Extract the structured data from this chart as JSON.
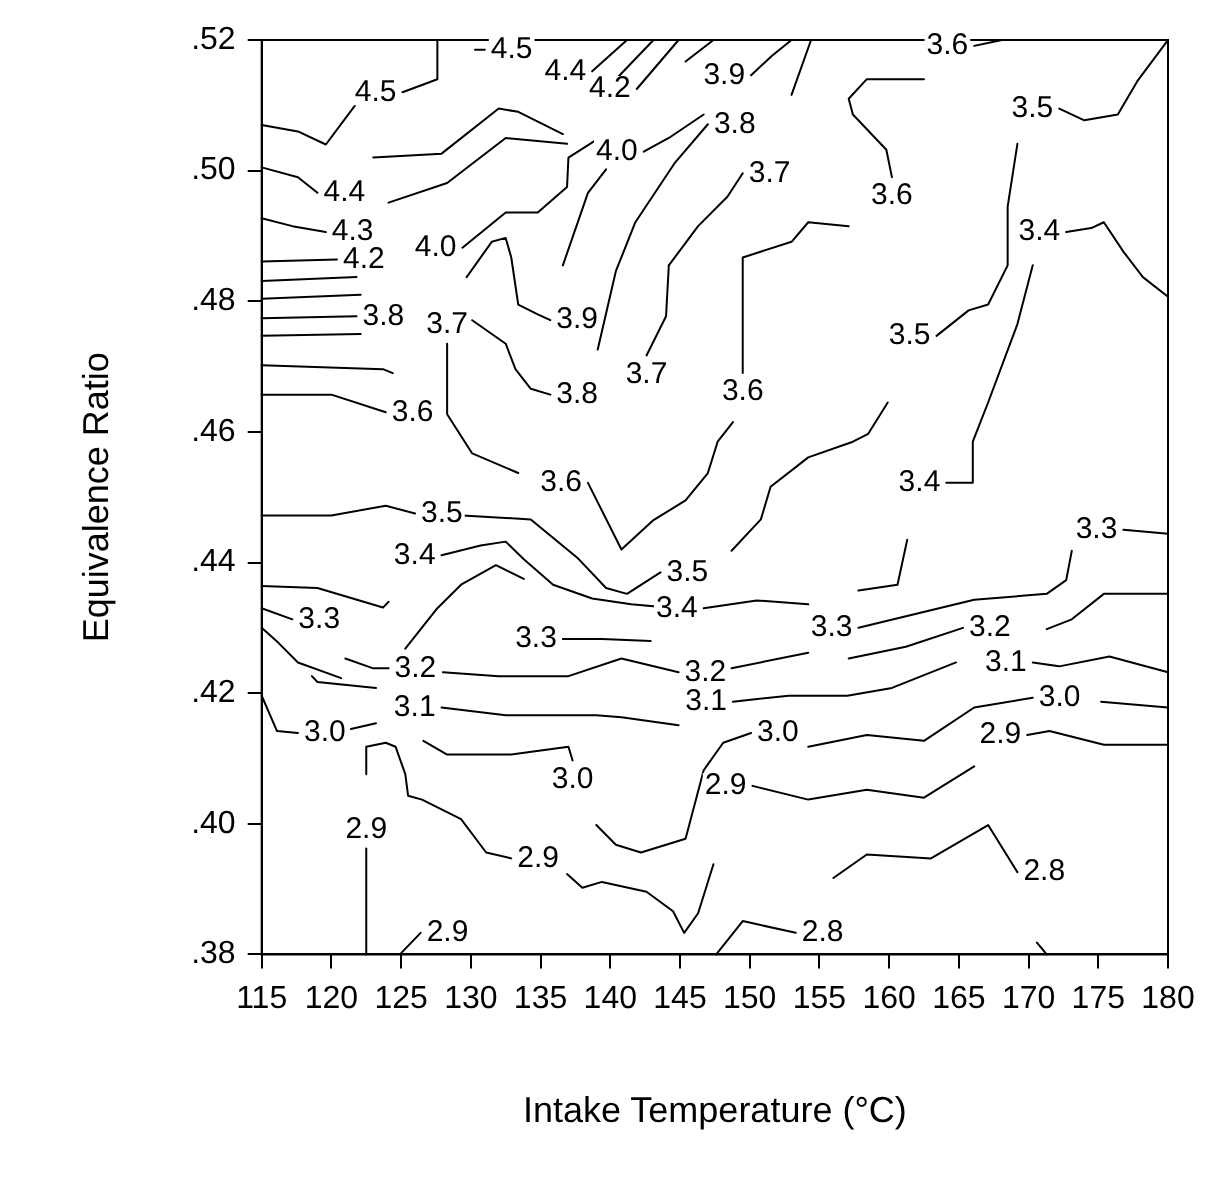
{
  "chart_data": {
    "type": "line",
    "xlabel": "Intake Temperature (°C)",
    "ylabel": "Equivalence Ratio",
    "xlim": [
      115,
      180
    ],
    "xticks": [
      115,
      120,
      125,
      130,
      135,
      140,
      145,
      150,
      155,
      160,
      165,
      170,
      175,
      180
    ],
    "ylim": [
      0.38,
      0.52
    ],
    "yticks": [
      {
        "value": 0.38,
        "label": ".38"
      },
      {
        "value": 0.4,
        "label": ".40"
      },
      {
        "value": 0.42,
        "label": ".42"
      },
      {
        "value": 0.44,
        "label": ".44"
      },
      {
        "value": 0.46,
        "label": ".46"
      },
      {
        "value": 0.48,
        "label": ".48"
      },
      {
        "value": 0.5,
        "label": ".50"
      },
      {
        "value": 0.52,
        "label": ".52"
      }
    ],
    "grid": false,
    "legend": false,
    "marker": "none",
    "line_style": "solid",
    "series": [
      {
        "name": "4.5",
        "color": "#000000",
        "x": [
          127.6,
          127.6,
          125.1
        ],
        "values": [
          0.52,
          0.514,
          0.512
        ]
      },
      {
        "name": "4.5",
        "color": "#000000",
        "x": [
          130.3,
          131.0
        ],
        "values": [
          0.5185,
          0.5185
        ]
      },
      {
        "color": "#000000",
        "x": [
          121.7,
          119.6,
          117.6,
          115
        ],
        "values": [
          0.51,
          0.504,
          0.506,
          0.507
        ]
      },
      {
        "name": "4.4",
        "color": "#000000",
        "x": [
          115,
          117.6,
          119.0
        ],
        "values": [
          0.5005,
          0.499,
          0.4966
        ]
      },
      {
        "color": "#000000",
        "x": [
          123.0,
          127.9,
          132.0,
          133.4,
          136.6
        ],
        "values": [
          0.502,
          0.5026,
          0.5095,
          0.509,
          0.5056
        ]
      },
      {
        "name": "4.3",
        "color": "#000000",
        "x": [
          115,
          117.2,
          119.6
        ],
        "values": [
          0.4927,
          0.4915,
          0.4906
        ]
      },
      {
        "color": "#000000",
        "x": [
          124.1,
          128.3,
          132.5,
          136.9
        ],
        "values": [
          0.4951,
          0.4981,
          0.505,
          0.5041
        ]
      },
      {
        "name": "4.2",
        "color": "#000000",
        "x": [
          115,
          120.4
        ],
        "values": [
          0.4861,
          0.4864
        ]
      },
      {
        "color": "#000000",
        "x": [
          115,
          121.8
        ],
        "values": [
          0.4831,
          0.4837
        ]
      },
      {
        "color": "#000000",
        "x": [
          115,
          122.1
        ],
        "values": [
          0.4804,
          0.481
        ]
      },
      {
        "name": "3.8",
        "color": "#000000",
        "x": [
          115,
          121.8
        ],
        "values": [
          0.4774,
          0.4777
        ]
      },
      {
        "color": "#000000",
        "x": [
          115,
          122.1
        ],
        "values": [
          0.4747,
          0.475
        ]
      },
      {
        "color": "#000000",
        "x": [
          115,
          123.7,
          124.4
        ],
        "values": [
          0.4702,
          0.4696,
          0.469
        ]
      },
      {
        "name": "3.6",
        "color": "#000000",
        "x": [
          115,
          120.0,
          123.9
        ],
        "values": [
          0.4657,
          0.4657,
          0.463
        ]
      },
      {
        "name": "4.0",
        "color": "#000000",
        "x": [
          146.7,
          144.2,
          142.4
        ],
        "values": [
          0.5086,
          0.505,
          0.5029
        ]
      },
      {
        "name": "4.0",
        "color": "#000000",
        "x": [
          139.0,
          137.0,
          136.9,
          134.8,
          132.5,
          129.4
        ],
        "values": [
          0.5047,
          0.502,
          0.4975,
          0.4936,
          0.4936,
          0.4882
        ]
      },
      {
        "name": "4.4",
        "color": "#000000",
        "x": [
          141.2,
          138.7
        ],
        "values": [
          0.52,
          0.5152
        ]
      },
      {
        "color": "#000000",
        "x": [
          140.4,
          143.1
        ],
        "values": [
          0.514,
          0.52
        ]
      },
      {
        "name": "4.2",
        "color": "#000000",
        "x": [
          144.9,
          141.9
        ],
        "values": [
          0.52,
          0.5125
        ]
      },
      {
        "color": "#000000",
        "x": [
          145.4,
          147.4
        ],
        "values": [
          0.5167,
          0.52
        ]
      },
      {
        "name": "3.9",
        "color": "#000000",
        "x": [
          153.0,
          151.6,
          150.1
        ],
        "values": [
          0.52,
          0.5176,
          0.5146
        ]
      },
      {
        "name": "3.9",
        "color": "#000000",
        "x": [
          129.7,
          131.5,
          132.5,
          132.9,
          133.4,
          134.8,
          135.7
        ],
        "values": [
          0.4837,
          0.4891,
          0.4897,
          0.4867,
          0.4795,
          0.478,
          0.4771
        ]
      },
      {
        "color": "#000000",
        "x": [
          136.6,
          138.4,
          139.7
        ],
        "values": [
          0.4855,
          0.4966,
          0.5002
        ]
      },
      {
        "name": "3.8",
        "color": "#000000",
        "x": [
          130.1,
          132.5,
          133.2,
          134.3,
          135.7
        ],
        "values": [
          0.4771,
          0.4735,
          0.4696,
          0.4666,
          0.4657
        ]
      },
      {
        "name": "3.8",
        "color": "#000000",
        "x": [
          139.1,
          140.4,
          141.8,
          144.6,
          147.0
        ],
        "values": [
          0.4726,
          0.4846,
          0.4921,
          0.5011,
          0.5071
        ]
      },
      {
        "name": "3.7",
        "color": "#000000",
        "x": [
          144.2,
          144.0,
          142.6
        ],
        "values": [
          0.4855,
          0.4777,
          0.4717
        ]
      },
      {
        "name": "3.7",
        "color": "#000000",
        "x": [
          144.2,
          146.3,
          148.4,
          149.5
        ],
        "values": [
          0.4855,
          0.4915,
          0.496,
          0.4996
        ]
      },
      {
        "color": "#000000",
        "x": [
          153.0,
          154.4
        ],
        "values": [
          0.5116,
          0.52
        ]
      },
      {
        "name": "3.7",
        "color": "#000000",
        "x": [
          133.4,
          130.1,
          128.3,
          128.3
        ],
        "values": [
          0.4537,
          0.4567,
          0.4627,
          0.4735
        ]
      },
      {
        "name": "3.6",
        "color": "#000000",
        "x": [
          148.8,
          147.7,
          147.0,
          145.4,
          143.1,
          140.8,
          138.4
        ],
        "values": [
          0.4615,
          0.4585,
          0.4537,
          0.4495,
          0.4465,
          0.442,
          0.4522
        ]
      },
      {
        "name": "3.6",
        "color": "#000000",
        "x": [
          157.1,
          154.2,
          153.0,
          149.5,
          149.5
        ],
        "values": [
          0.4915,
          0.4921,
          0.4891,
          0.4867,
          0.469
        ]
      },
      {
        "name": "3.6",
        "color": "#000000",
        "x": [
          168.1,
          166.1
        ],
        "values": [
          0.52,
          0.5191
        ]
      },
      {
        "name": "3.6",
        "color": "#000000",
        "x": [
          162.5,
          158.4,
          157.1,
          157.4,
          159.8,
          160.2
        ],
        "values": [
          0.514,
          0.514,
          0.511,
          0.5086,
          0.5032,
          0.499
        ]
      },
      {
        "name": "3.5",
        "color": "#000000",
        "x": [
          115,
          120.0,
          123.9,
          126.0
        ],
        "values": [
          0.4472,
          0.4472,
          0.4487,
          0.4475
        ]
      },
      {
        "name": "3.5",
        "color": "#000000",
        "x": [
          129.4,
          134.3,
          137.7,
          139.7,
          141.2,
          143.6
        ],
        "values": [
          0.4472,
          0.4466,
          0.4406,
          0.4361,
          0.4352,
          0.4385
        ]
      },
      {
        "color": "#000000",
        "x": [
          148.7,
          150.8,
          151.5,
          154.2,
          157.4,
          158.5,
          159.9
        ],
        "values": [
          0.4418,
          0.4466,
          0.4516,
          0.4561,
          0.4585,
          0.4597,
          0.4645
        ]
      },
      {
        "name": "3.5",
        "color": "#000000",
        "x": [
          169.2,
          168.5,
          168.5,
          167.1,
          165.7,
          163.4
        ],
        "values": [
          0.5041,
          0.4945,
          0.4855,
          0.4795,
          0.4786,
          0.4747
        ]
      },
      {
        "name": "3.5",
        "color": "#000000",
        "x": [
          179.9,
          177.8,
          176.4,
          174.0,
          172.2
        ],
        "values": [
          0.5197,
          0.5137,
          0.5086,
          0.5077,
          0.5095
        ]
      },
      {
        "color": "#000000",
        "x": [
          115,
          119.0,
          123.7,
          124.1
        ],
        "values": [
          0.4364,
          0.4361,
          0.4331,
          0.434
        ]
      },
      {
        "name": "3.4",
        "color": "#000000",
        "x": [
          154.2,
          150.5,
          146.7
        ],
        "values": [
          0.4336,
          0.4342,
          0.433
        ]
      },
      {
        "name": "3.4",
        "color": "#000000",
        "x": [
          143.1,
          141.5,
          138.7,
          135.9,
          133.8,
          132.5,
          130.7,
          127.9
        ],
        "values": [
          0.4333,
          0.4336,
          0.4345,
          0.4366,
          0.4405,
          0.4432,
          0.4426,
          0.4411
        ]
      },
      {
        "color": "#000000",
        "x": [
          157.8,
          160.6,
          161.3
        ],
        "values": [
          0.4357,
          0.4366,
          0.4435
        ]
      },
      {
        "name": "3.4",
        "color": "#000000",
        "x": [
          170.3,
          169.2,
          167.1,
          166.0,
          166.0,
          164.1
        ],
        "values": [
          0.4855,
          0.4765,
          0.4645,
          0.4585,
          0.4522,
          0.4522
        ]
      },
      {
        "name": "3.4",
        "color": "#000000",
        "x": [
          180,
          178.2,
          176.8,
          175.4,
          174.5,
          172.7
        ],
        "values": [
          0.4807,
          0.4837,
          0.4876,
          0.4921,
          0.4912,
          0.4906
        ]
      },
      {
        "name": "3.3",
        "color": "#000000",
        "x": [
          115,
          117.2
        ],
        "values": [
          0.433,
          0.4313
        ]
      },
      {
        "name": "3.2",
        "color": "#000000",
        "x": [
          121.0,
          123.0,
          124.1
        ],
        "values": [
          0.4253,
          0.4238,
          0.4238
        ]
      },
      {
        "color": "#000000",
        "x": [
          125.3,
          127.6,
          129.3,
          131.8,
          133.8
        ],
        "values": [
          0.4268,
          0.433,
          0.4366,
          0.4396,
          0.4375
        ]
      },
      {
        "name": "3.3",
        "color": "#000000",
        "x": [
          142.9,
          139.4,
          136.6
        ],
        "values": [
          0.428,
          0.4283,
          0.4283
        ]
      },
      {
        "name": "3.3",
        "color": "#000000",
        "x": [
          173.1,
          172.7,
          171.3,
          166.1,
          157.8
        ],
        "values": [
          0.4418,
          0.4373,
          0.4352,
          0.4343,
          0.43
        ]
      },
      {
        "name": "3.3",
        "color": "#000000",
        "x": [
          180,
          176.8
        ],
        "values": [
          0.4444,
          0.445
        ]
      },
      {
        "color": "#000000",
        "x": [
          115,
          116.2,
          117.6,
          120.7
        ],
        "values": [
          0.43,
          0.4277,
          0.4247,
          0.4223
        ]
      },
      {
        "color": "#000000",
        "x": [
          118.6,
          119.0,
          123.2
        ],
        "values": [
          0.4226,
          0.4217,
          0.4208
        ]
      },
      {
        "name": "3.2",
        "color": "#000000",
        "x": [
          128.0,
          132.0,
          137.0,
          140.8,
          144.9
        ],
        "values": [
          0.4232,
          0.4226,
          0.4226,
          0.4253,
          0.4232
        ]
      },
      {
        "color": "#000000",
        "x": [
          148.7,
          154.2
        ],
        "values": [
          0.4238,
          0.4262
        ]
      },
      {
        "name": "3.2",
        "color": "#000000",
        "x": [
          157.1,
          161.2,
          165.3
        ],
        "values": [
          0.4253,
          0.4271,
          0.43
        ]
      },
      {
        "color": "#000000",
        "x": [
          171.3,
          173.1,
          175.4,
          180
        ],
        "values": [
          0.4298,
          0.4313,
          0.4352,
          0.4352
        ]
      },
      {
        "name": "3.0",
        "color": "#000000",
        "x": [
          115,
          116.1,
          117.6
        ],
        "values": [
          0.4196,
          0.4142,
          0.4139
        ]
      },
      {
        "color": "#000000",
        "x": [
          121.4,
          123.2
        ],
        "values": [
          0.4145,
          0.4154
        ]
      },
      {
        "name": "3.1",
        "color": "#000000",
        "x": [
          144.9,
          140.8,
          139.0,
          132.5,
          127.9
        ],
        "values": [
          0.4151,
          0.4163,
          0.4166,
          0.4166,
          0.4178
        ]
      },
      {
        "name": "3.1",
        "color": "#000000",
        "x": [
          164.8,
          160.2,
          157.0,
          152.8,
          148.8
        ],
        "values": [
          0.4247,
          0.4208,
          0.4196,
          0.4196,
          0.4187
        ]
      },
      {
        "name": "3.1",
        "color": "#000000",
        "x": [
          180,
          175.8,
          172.2,
          170.3
        ],
        "values": [
          0.4232,
          0.4256,
          0.4241,
          0.4247
        ]
      },
      {
        "name": "3.0",
        "color": "#000000",
        "x": [
          126.6,
          128.3,
          132.9,
          137.0,
          137.3
        ],
        "values": [
          0.4127,
          0.4106,
          0.4106,
          0.4118,
          0.4097
        ]
      },
      {
        "name": "3.0",
        "color": "#000000",
        "x": [
          139.0,
          140.4,
          142.2,
          145.4,
          146.7,
          148.1,
          150.1
        ],
        "values": [
          0.3998,
          0.3968,
          0.3956,
          0.3977,
          0.4082,
          0.4124,
          0.4139
        ]
      },
      {
        "name": "3.0",
        "color": "#000000",
        "x": [
          154.2,
          158.4,
          162.5,
          166.1,
          170.3
        ],
        "values": [
          0.4118,
          0.4136,
          0.4127,
          0.4178,
          0.4193
        ]
      },
      {
        "color": "#000000",
        "x": [
          175.2,
          180
        ],
        "values": [
          0.4187,
          0.4178
        ]
      },
      {
        "name": "2.9",
        "color": "#000000",
        "x": [
          122.5,
          122.5
        ],
        "values": [
          0.38,
          0.3962
        ]
      },
      {
        "name": "2.9",
        "color": "#000000",
        "x": [
          122.5,
          122.5,
          123.9,
          124.6,
          125.3,
          125.5,
          126.5,
          129.3,
          131.1,
          132.9
        ],
        "values": [
          0.4076,
          0.4118,
          0.4124,
          0.4118,
          0.4076,
          0.4043,
          0.4037,
          0.4007,
          0.3956,
          0.3947
        ]
      },
      {
        "color": "#000000",
        "x": [
          136.9,
          138.0,
          139.4,
          142.6,
          144.5,
          145.3,
          146.3,
          147.4
        ],
        "values": [
          0.3923,
          0.3902,
          0.3911,
          0.3896,
          0.3866,
          0.3833,
          0.3863,
          0.3938
        ]
      },
      {
        "name": "2.9",
        "color": "#000000",
        "x": [
          166.1,
          162.5,
          158.4,
          154.2,
          150.2
        ],
        "values": [
          0.4088,
          0.404,
          0.4052,
          0.4037,
          0.4058
        ]
      },
      {
        "name": "2.9",
        "color": "#000000",
        "x": [
          180,
          175.4,
          171.5,
          169.9
        ],
        "values": [
          0.4121,
          0.4121,
          0.4142,
          0.4136
        ]
      },
      {
        "name": "2.9",
        "color": "#000000",
        "x": [
          125.0,
          126.4
        ],
        "values": [
          0.3802,
          0.3833
        ]
      },
      {
        "name": "2.8",
        "color": "#000000",
        "x": [
          147.6,
          149.5,
          153.3
        ],
        "values": [
          0.38,
          0.3851,
          0.3833
        ]
      },
      {
        "name": "2.8",
        "color": "#000000",
        "x": [
          156.0,
          158.4,
          163.0,
          167.1,
          169.2
        ],
        "values": [
          0.3917,
          0.3953,
          0.3947,
          0.3998,
          0.3926
        ]
      },
      {
        "color": "#000000",
        "x": [
          170.6,
          171.3
        ],
        "values": [
          0.3818,
          0.38
        ]
      }
    ]
  }
}
